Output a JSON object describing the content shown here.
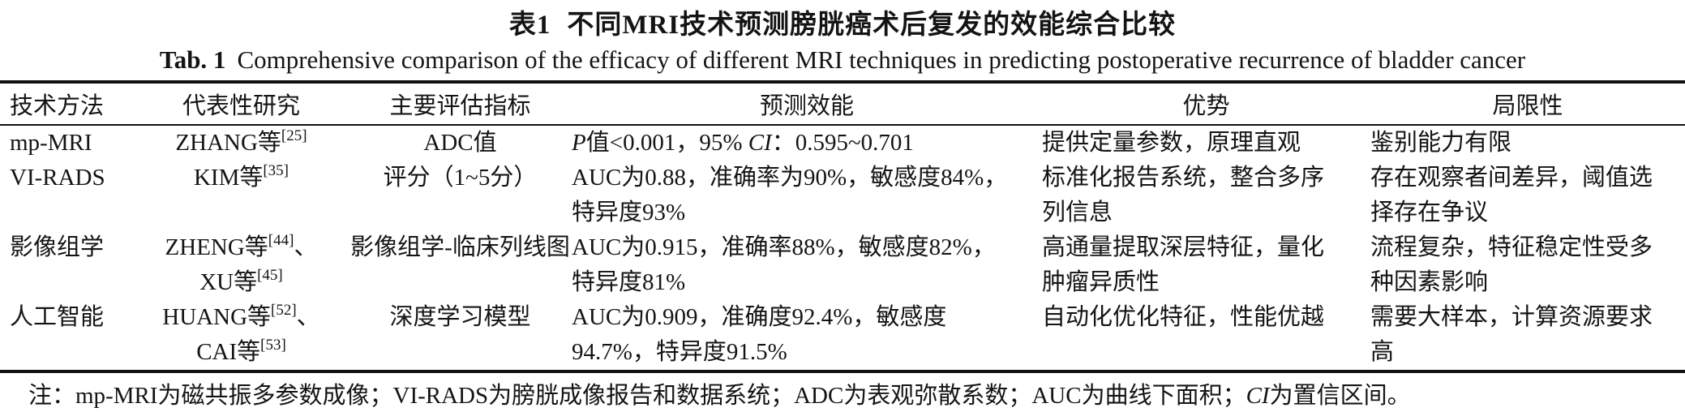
{
  "title": {
    "zh_label": "表1",
    "zh_text": "不同MRI技术预测膀胱癌术后复发的效能综合比较",
    "en_label": "Tab. 1",
    "en_text": "Comprehensive comparison of the efficacy of different MRI techniques in predicting postoperative recurrence of bladder cancer"
  },
  "table": {
    "columns": [
      {
        "key": "method",
        "label": "技术方法"
      },
      {
        "key": "study",
        "label": "代表性研究"
      },
      {
        "key": "indicator",
        "label": "主要评估指标"
      },
      {
        "key": "efficacy",
        "label": "预测效能"
      },
      {
        "key": "advantage",
        "label": "优势"
      },
      {
        "key": "limitation",
        "label": "局限性"
      }
    ],
    "rows": [
      {
        "method": [
          "mp-MRI"
        ],
        "study": [
          "ZHANG等‹[25]›"
        ],
        "indicator": [
          "ADC值"
        ],
        "efficacy": [
          "«P»值<0.001，95% «CI»：0.595~0.701"
        ],
        "advantage": [
          "提供定量参数，原理直观"
        ],
        "limitation": [
          "鉴别能力有限"
        ]
      },
      {
        "method": [
          "VI-RADS"
        ],
        "study": [
          "KIM等‹[35]›"
        ],
        "indicator": [
          "评分（1~5分）"
        ],
        "efficacy": [
          "AUC为0.88，准确率为90%，敏感度84%，",
          "特异度93%"
        ],
        "advantage": [
          "标准化报告系统，整合多序",
          "列信息"
        ],
        "limitation": [
          "存在观察者间差异，阈值选",
          "择存在争议"
        ]
      },
      {
        "method": [
          "影像组学"
        ],
        "study": [
          "ZHENG等‹[44]›、",
          "XU等‹[45]›"
        ],
        "indicator": [
          "影像组学-临床列线图"
        ],
        "efficacy": [
          "AUC为0.915，准确率88%，敏感度82%，",
          "特异度81%"
        ],
        "advantage": [
          "高通量提取深层特征，量化",
          "肿瘤异质性"
        ],
        "limitation": [
          "流程复杂，特征稳定性受多",
          "种因素影响"
        ]
      },
      {
        "method": [
          "人工智能"
        ],
        "study": [
          "HUANG等‹[52]›、",
          "CAI等‹[53]›"
        ],
        "indicator": [
          "深度学习模型"
        ],
        "efficacy": [
          "AUC为0.909，准确度92.4%，敏感度",
          "94.7%，特异度91.5%"
        ],
        "advantage": [
          "自动化优化特征，性能优越"
        ],
        "limitation": [
          "需要大样本，计算资源要求",
          "高"
        ]
      }
    ]
  },
  "note": "注：mp-MRI为磁共振多参数成像；VI-RADS为膀胱成像报告和数据系统；ADC为表观弥散系数；AUC为曲线下面积；«CI»为置信区间。"
}
